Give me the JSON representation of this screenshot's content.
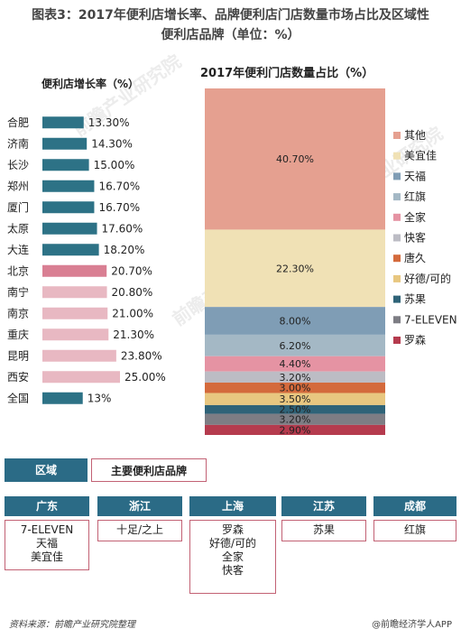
{
  "title_line1": "图表3：2017年便利店增长率、品牌便利店门店数量市场占比及区域性",
  "title_line2": "便利店品牌（单位：%）",
  "watermark": "前瞻产业研究院",
  "chart_data": [
    {
      "type": "bar",
      "title": "便利店增长率（%）",
      "categories": [
        "合肥",
        "济南",
        "长沙",
        "郑州",
        "厦门",
        "太原",
        "大连",
        "北京",
        "南宁",
        "南京",
        "重庆",
        "昆明",
        "西安",
        "全国"
      ],
      "values": [
        13.3,
        14.3,
        15.0,
        16.7,
        16.7,
        17.6,
        18.2,
        20.7,
        20.8,
        21.0,
        21.3,
        23.8,
        25.0,
        13
      ],
      "value_labels": [
        "13.30%",
        "14.30%",
        "15.00%",
        "16.70%",
        "16.70%",
        "17.60%",
        "18.20%",
        "20.70%",
        "20.80%",
        "21.00%",
        "21.30%",
        "23.80%",
        "25.00%",
        "13%"
      ],
      "bar_colors": [
        "#2d7286",
        "#2d7286",
        "#2d7286",
        "#2d7286",
        "#2d7286",
        "#2d7286",
        "#2d7286",
        "#d97f93",
        "#e8b8c2",
        "#e8b8c2",
        "#e8b8c2",
        "#e8b8c2",
        "#e8b8c2",
        "#2d7286"
      ],
      "orientation": "horizontal"
    },
    {
      "type": "bar",
      "stacked": true,
      "title": "2017年便利门店数量占比（%）",
      "series": [
        {
          "name": "其他",
          "value": 40.7,
          "label": "40.70%",
          "color": "#e5a090"
        },
        {
          "name": "美宜佳",
          "value": 22.3,
          "label": "22.30%",
          "color": "#f0e1b5"
        },
        {
          "name": "天福",
          "value": 8.0,
          "label": "8.00%",
          "color": "#7f9db5"
        },
        {
          "name": "红旗",
          "value": 6.2,
          "label": "6.20%",
          "color": "#a4b8c5"
        },
        {
          "name": "全家",
          "value": 4.4,
          "label": "4.40%",
          "color": "#e593a3"
        },
        {
          "name": "快客",
          "value": 3.2,
          "label": "3.20%",
          "color": "#bcbcc4"
        },
        {
          "name": "唐久",
          "value": 3.0,
          "label": "3.00%",
          "color": "#d46a3c"
        },
        {
          "name": "好德/可的",
          "value": 3.5,
          "label": "3.50%",
          "color": "#e8c780"
        },
        {
          "name": "苏果",
          "value": 2.5,
          "label": "2.50%",
          "color": "#2f6378"
        },
        {
          "name": "7-ELEVEN",
          "value": 3.2,
          "label": "3.20%",
          "color": "#7d7d84"
        },
        {
          "name": "罗森",
          "value": 2.9,
          "label": "2.90%",
          "color": "#b53b4e"
        }
      ]
    },
    {
      "type": "table",
      "header": {
        "region_label": "区域",
        "brand_label": "主要便利店品牌"
      },
      "regions": [
        {
          "name": "广东",
          "brands": [
            "7-ELEVEN",
            "天福",
            "美宜佳"
          ]
        },
        {
          "name": "浙江",
          "brands": [
            "十足/之上"
          ]
        },
        {
          "name": "上海",
          "brands": [
            "罗森",
            "好德/可的",
            "全家",
            "快客"
          ]
        },
        {
          "name": "江苏",
          "brands": [
            "苏果"
          ]
        },
        {
          "name": "成都",
          "brands": [
            "红旗"
          ]
        }
      ]
    }
  ],
  "footer": {
    "source": "资料来源：前瞻产业研究院整理",
    "credit": "@前瞻经济学人APP"
  }
}
